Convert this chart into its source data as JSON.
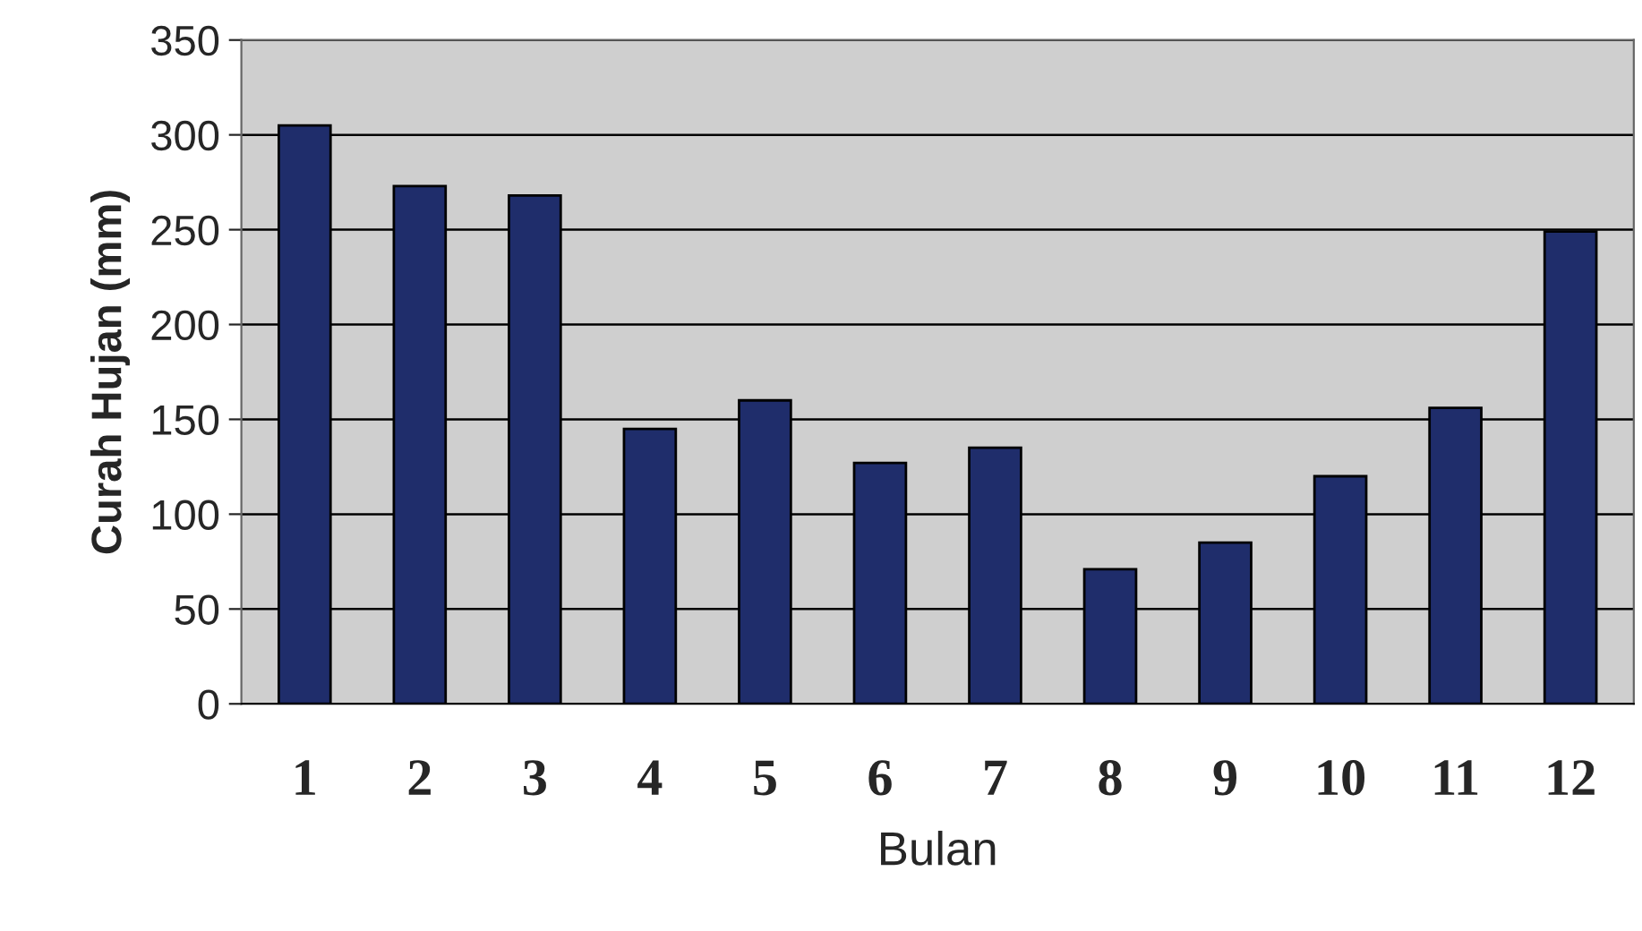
{
  "chart_data": {
    "type": "bar",
    "xlabel": "Bulan",
    "ylabel": "Curah Hujan (mm)",
    "categories": [
      "1",
      "2",
      "3",
      "4",
      "5",
      "6",
      "7",
      "8",
      "9",
      "10",
      "11",
      "12"
    ],
    "values": [
      305,
      273,
      268,
      145,
      160,
      127,
      135,
      71,
      85,
      120,
      156,
      249
    ],
    "color": "#1f2d6b",
    "ylim": [
      0,
      350
    ],
    "yticks": [
      0,
      50,
      100,
      150,
      200,
      250,
      300,
      350
    ],
    "grid": "y"
  }
}
